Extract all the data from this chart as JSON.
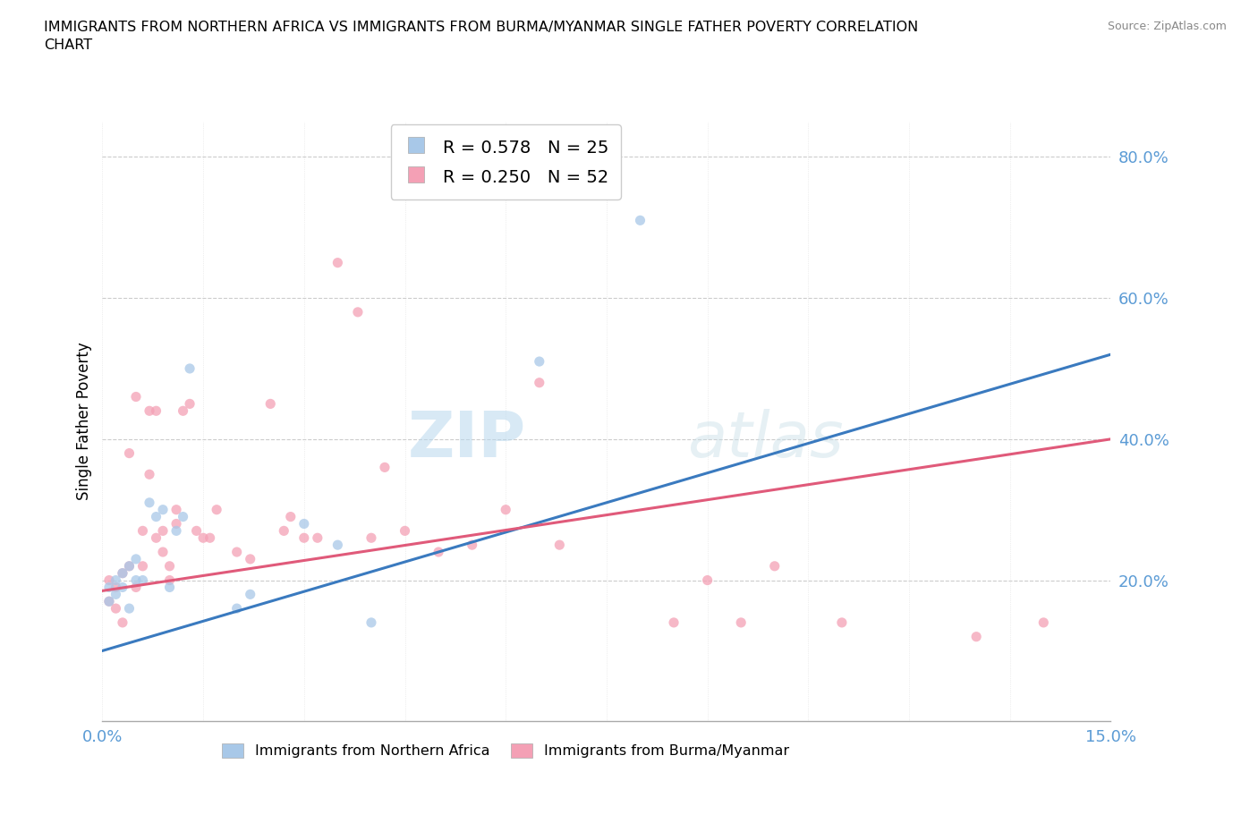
{
  "title": "IMMIGRANTS FROM NORTHERN AFRICA VS IMMIGRANTS FROM BURMA/MYANMAR SINGLE FATHER POVERTY CORRELATION\nCHART",
  "source": "Source: ZipAtlas.com",
  "ylabel": "Single Father Poverty",
  "xmin": 0.0,
  "xmax": 0.15,
  "ymin": 0.0,
  "ymax": 0.85,
  "legend_R1": "R = 0.578",
  "legend_N1": "N = 25",
  "legend_R2": "R = 0.250",
  "legend_N2": "N = 52",
  "color_blue": "#a8c8e8",
  "color_pink": "#f4a0b5",
  "line_color_blue": "#3a7abf",
  "line_color_pink": "#e05a7a",
  "watermark_zip": "ZIP",
  "watermark_atlas": "atlas",
  "blue_scatter_x": [
    0.001,
    0.001,
    0.002,
    0.002,
    0.003,
    0.003,
    0.004,
    0.004,
    0.005,
    0.005,
    0.006,
    0.007,
    0.008,
    0.009,
    0.01,
    0.011,
    0.012,
    0.013,
    0.02,
    0.022,
    0.03,
    0.035,
    0.04,
    0.065,
    0.08
  ],
  "blue_scatter_y": [
    0.19,
    0.17,
    0.2,
    0.18,
    0.21,
    0.19,
    0.22,
    0.16,
    0.2,
    0.23,
    0.2,
    0.31,
    0.29,
    0.3,
    0.19,
    0.27,
    0.29,
    0.5,
    0.16,
    0.18,
    0.28,
    0.25,
    0.14,
    0.51,
    0.71
  ],
  "pink_scatter_x": [
    0.001,
    0.001,
    0.002,
    0.002,
    0.003,
    0.003,
    0.004,
    0.004,
    0.005,
    0.005,
    0.006,
    0.006,
    0.007,
    0.007,
    0.008,
    0.008,
    0.009,
    0.009,
    0.01,
    0.01,
    0.011,
    0.011,
    0.012,
    0.013,
    0.014,
    0.015,
    0.016,
    0.017,
    0.02,
    0.022,
    0.025,
    0.027,
    0.028,
    0.03,
    0.032,
    0.035,
    0.038,
    0.04,
    0.042,
    0.045,
    0.05,
    0.055,
    0.06,
    0.065,
    0.068,
    0.085,
    0.09,
    0.095,
    0.1,
    0.11,
    0.13,
    0.14
  ],
  "pink_scatter_y": [
    0.2,
    0.17,
    0.19,
    0.16,
    0.21,
    0.14,
    0.22,
    0.38,
    0.19,
    0.46,
    0.22,
    0.27,
    0.44,
    0.35,
    0.26,
    0.44,
    0.24,
    0.27,
    0.2,
    0.22,
    0.28,
    0.3,
    0.44,
    0.45,
    0.27,
    0.26,
    0.26,
    0.3,
    0.24,
    0.23,
    0.45,
    0.27,
    0.29,
    0.26,
    0.26,
    0.65,
    0.58,
    0.26,
    0.36,
    0.27,
    0.24,
    0.25,
    0.3,
    0.48,
    0.25,
    0.14,
    0.2,
    0.14,
    0.22,
    0.14,
    0.12,
    0.14
  ],
  "blue_line_x0": 0.0,
  "blue_line_y0": 0.1,
  "blue_line_x1": 0.15,
  "blue_line_y1": 0.52,
  "pink_line_x0": 0.0,
  "pink_line_y0": 0.185,
  "pink_line_x1": 0.15,
  "pink_line_y1": 0.4
}
